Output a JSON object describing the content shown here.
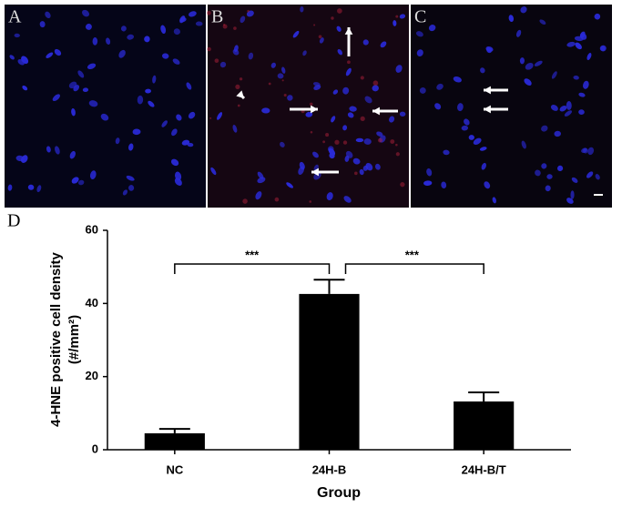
{
  "panels": [
    "A",
    "B",
    "C"
  ],
  "chart_data": {
    "type": "bar",
    "label": "D",
    "ylabel": "4-HNE positive cell density",
    "ylabel_unit": "(#/mm²)",
    "xlabel": "Group",
    "categories": [
      "NC",
      "24H-B",
      "24H-B/T"
    ],
    "values": [
      4.5,
      42.6,
      13.2
    ],
    "errors": [
      1.2,
      3.9,
      2.5
    ],
    "color": "#000000",
    "ylim": [
      0,
      60
    ],
    "yticks": [
      0,
      20,
      40,
      60
    ],
    "grid": false,
    "annotations": [
      "***",
      "***"
    ]
  }
}
